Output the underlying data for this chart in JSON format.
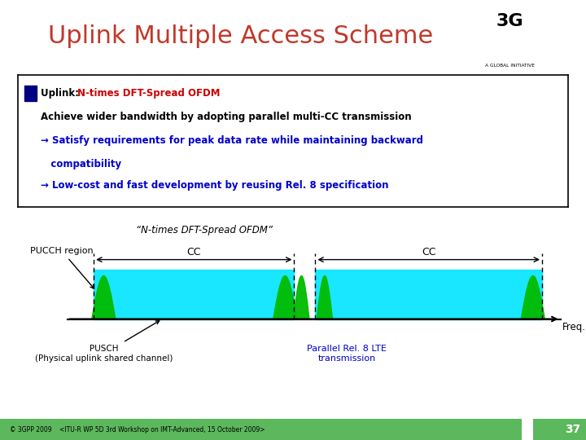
{
  "title": "Uplink Multiple Access Scheme",
  "title_color": "#C0392B",
  "title_fontsize": 22,
  "line1_black": "Uplink: ",
  "line1_red": "N-times DFT-Spread OFDM",
  "line2": "Achieve wider bandwidth by adopting parallel multi-CC transmission",
  "arrow1a": "→ Satisfy requirements for peak data rate while maintaining backward",
  "arrow1b": "   compatibility",
  "arrow2": "→ Low-cost and fast development by reusing Rel. 8 specification",
  "diagram_label_top": "“N-times DFT-Spread OFDM”",
  "pucch_label": "PUCCH region",
  "cc_label": "CC",
  "freq_label": "Freq.",
  "pusch_label": "PUSCH\n(Physical uplink shared channel)",
  "parallel_label": "Parallel Rel. 8 LTE\ntransmission",
  "footer_text": "© 3GPP 2009    <ITU-R WP 5D 3rd Workshop on IMT-Advanced, 15 October 2009>",
  "slide_number": "37",
  "bg_color": "#FFFFFF",
  "footer_color": "#5CB85C",
  "cyan_color": "#00E5FF",
  "green_color": "#00BB00",
  "blue_text": "#0000CC",
  "red_text": "#CC0000",
  "black_text": "#000000",
  "navy": "#000080"
}
